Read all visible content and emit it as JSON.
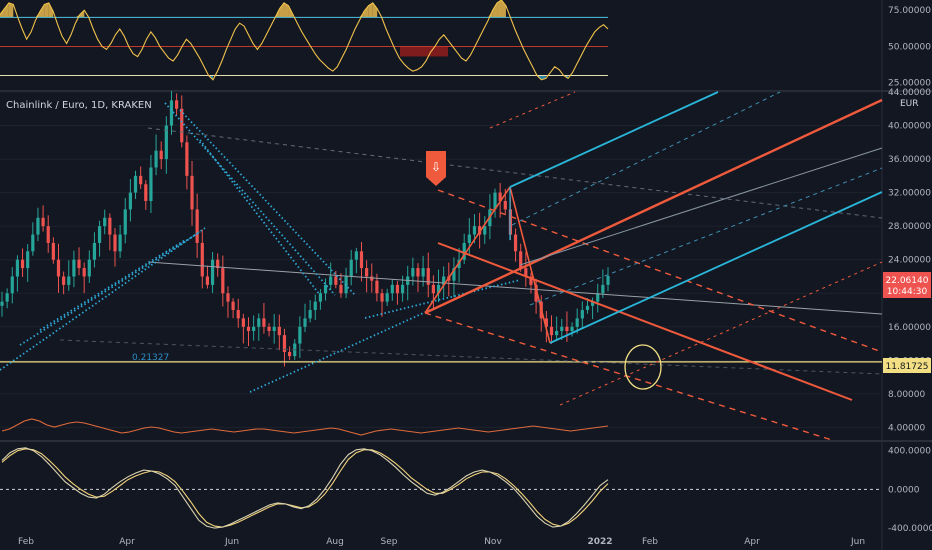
{
  "symbol_title": "Chainlink / Euro, 1D, KRAKEN",
  "currency": "EUR",
  "fib_label": "0.21327",
  "arrow_marker": "⇩",
  "price_badges": {
    "last_price": "22.06140",
    "countdown": "10:44:30",
    "horizontal_line": "11.81725"
  },
  "colors": {
    "background": "#131722",
    "up_candle": "#26a69a",
    "down_candle": "#ef5350",
    "pitchfork_red": "#f05a3c",
    "pitchfork_cyan": "#29b6d8",
    "horizontal_line": "#f3df83",
    "rsi_line": "#f0c24b",
    "rsi_fill_high": "#e7b74c",
    "rsi_fill_low": "#2a8fb8",
    "volatility_line": "#e06a3a",
    "stoch_k": "#f1d27a",
    "stoch_d": "#d9d2b0"
  },
  "chart_data": [
    {
      "type": "line",
      "panel": "rsi",
      "y_ticks": [
        "75.00000",
        "50.00000",
        "25.00000"
      ],
      "levels": [
        70,
        50,
        30
      ],
      "ylim": [
        20,
        82
      ],
      "series": [
        {
          "values": [
            72,
            76,
            80,
            79,
            70,
            62,
            55,
            60,
            68,
            74,
            79,
            80,
            74,
            65,
            57,
            52,
            58,
            66,
            72,
            75,
            70,
            62,
            55,
            50,
            48,
            52,
            58,
            62,
            57,
            50,
            45,
            43,
            48,
            55,
            60,
            56,
            50,
            46,
            42,
            40,
            44,
            50,
            55,
            52,
            47,
            42,
            36,
            30,
            27,
            33,
            40,
            48,
            55,
            62,
            66,
            64,
            58,
            52,
            48,
            52,
            58,
            64,
            70,
            76,
            80,
            78,
            72,
            66,
            60,
            55,
            50,
            45,
            41,
            38,
            35,
            33,
            36,
            42,
            48,
            55,
            62,
            68,
            74,
            78,
            80,
            76,
            70,
            62,
            55,
            48,
            42,
            38,
            35,
            33,
            34,
            36,
            40,
            46,
            50,
            55,
            58,
            54,
            50,
            46,
            42,
            40,
            44,
            50,
            56,
            62,
            68,
            75,
            80,
            82,
            78,
            70,
            62,
            55,
            48,
            42,
            36,
            30,
            27,
            28,
            32,
            36,
            34,
            30,
            28,
            32,
            38,
            44,
            50,
            55,
            60,
            63,
            65,
            62
          ]
        }
      ]
    },
    {
      "type": "line",
      "panel": "price",
      "x_ticks": [
        "Feb",
        "Apr",
        "Jun",
        "Aug",
        "Sep",
        "Nov",
        "2022",
        "Feb",
        "Apr",
        "Jun"
      ],
      "y_ticks": [
        "44.00000",
        "40.00000",
        "36.00000",
        "32.00000",
        "28.00000",
        "24.00000",
        "20.00000",
        "16.00000",
        "12.00000",
        "8.00000",
        "4.00000"
      ],
      "ylim": [
        2.5,
        44
      ],
      "series": [
        {
          "values": [
            19,
            20,
            22,
            24,
            23,
            25,
            27,
            29,
            28,
            26,
            24,
            22,
            21,
            22,
            24,
            23,
            22,
            24,
            26,
            28,
            29,
            27,
            25,
            27,
            30,
            32,
            34,
            33,
            31,
            35,
            37,
            36,
            40,
            43,
            42,
            38,
            34,
            30,
            26,
            22,
            21,
            24,
            23,
            20,
            19,
            18,
            17,
            16,
            15.5,
            16,
            17,
            16,
            15.5,
            16,
            15,
            13,
            12.5,
            14,
            16,
            17,
            18,
            19,
            20,
            21,
            22,
            21,
            20,
            22,
            24,
            25,
            23,
            22,
            21.5,
            20,
            19,
            20,
            21,
            20,
            21,
            22,
            23,
            22,
            23,
            21,
            20,
            21,
            22,
            21.5,
            23,
            24,
            26,
            27,
            28,
            27,
            28,
            30,
            32,
            31,
            30,
            27,
            25,
            23,
            22,
            21,
            19,
            17,
            16,
            15,
            15.5,
            16,
            15.5,
            16,
            17,
            18,
            18.5,
            19,
            20,
            21,
            22.06
          ]
        }
      ]
    },
    {
      "type": "line",
      "panel": "volatility",
      "series": [
        {
          "values": [
            46,
            44,
            40,
            36,
            34,
            36,
            40,
            42,
            40,
            38,
            37,
            38,
            40,
            42,
            44,
            46,
            48,
            47,
            45,
            43,
            42,
            43,
            45,
            47,
            48,
            47,
            46,
            45,
            44,
            45,
            46,
            47,
            46,
            45,
            44,
            44,
            45,
            46,
            47,
            48,
            47,
            46,
            45,
            44,
            43,
            44,
            46,
            48,
            50,
            48,
            46,
            45,
            44,
            45,
            46,
            47,
            48,
            47,
            46,
            45,
            44,
            43,
            44,
            45,
            46,
            47,
            46,
            45,
            44,
            43,
            42,
            41,
            42,
            43,
            44,
            45,
            46,
            45,
            44,
            43,
            42,
            41
          ]
        }
      ]
    },
    {
      "type": "line",
      "panel": "stochastic",
      "y_ticks": [
        "400.0000",
        "0.0000",
        "-400.0000"
      ],
      "ylim": [
        -420,
        480
      ],
      "series": [
        {
          "values": [
            300,
            380,
            420,
            430,
            400,
            340,
            260,
            170,
            80,
            20,
            -40,
            -80,
            -90,
            -50,
            20,
            80,
            130,
            170,
            200,
            190,
            160,
            110,
            40,
            -80,
            -200,
            -320,
            -380,
            -400,
            -390,
            -360,
            -320,
            -280,
            -240,
            -200,
            -160,
            -140,
            -150,
            -180,
            -200,
            -170,
            -100,
            0,
            120,
            260,
            360,
            410,
            420,
            400,
            360,
            300,
            230,
            150,
            80,
            20,
            -40,
            -60,
            -30,
            20,
            80,
            140,
            180,
            200,
            180,
            140,
            80,
            10,
            -80,
            -180,
            -280,
            -350,
            -390,
            -380,
            -330,
            -250,
            -160,
            -60,
            40,
            100
          ]
        },
        {
          "values": [
            280,
            350,
            400,
            420,
            410,
            370,
            300,
            220,
            130,
            60,
            0,
            -50,
            -80,
            -70,
            -20,
            40,
            100,
            140,
            170,
            190,
            180,
            140,
            80,
            -20,
            -130,
            -250,
            -340,
            -380,
            -390,
            -370,
            -340,
            -300,
            -260,
            -220,
            -180,
            -150,
            -150,
            -170,
            -190,
            -180,
            -130,
            -50,
            60,
            190,
            310,
            380,
            410,
            410,
            380,
            330,
            270,
            200,
            120,
            60,
            0,
            -40,
            -40,
            0,
            50,
            110,
            150,
            180,
            180,
            160,
            110,
            40,
            -40,
            -130,
            -230,
            -310,
            -360,
            -380,
            -350,
            -290,
            -210,
            -120,
            -20,
            60
          ]
        }
      ]
    }
  ]
}
